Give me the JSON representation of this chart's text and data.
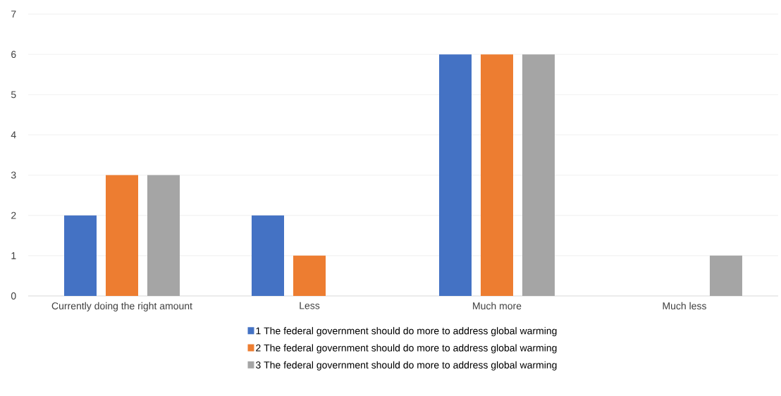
{
  "chart_data": {
    "type": "bar",
    "categories": [
      "Currently doing the right amount",
      "Less",
      "Much more",
      "Much less"
    ],
    "series": [
      {
        "name": "1 The federal government should do more to address global warming",
        "color": "#4472c4",
        "values": [
          2,
          2,
          6,
          0
        ]
      },
      {
        "name": "2 The federal government should do more to address global warming",
        "color": "#ed7d31",
        "values": [
          3,
          1,
          6,
          0
        ]
      },
      {
        "name": "3 The federal government should do more to address global warming",
        "color": "#a5a5a5",
        "values": [
          3,
          0,
          6,
          1
        ]
      }
    ],
    "ylim": [
      0,
      7
    ],
    "yticks": [
      0,
      1,
      2,
      3,
      4,
      5,
      6,
      7
    ],
    "grid": "y",
    "legend": "bottom"
  }
}
